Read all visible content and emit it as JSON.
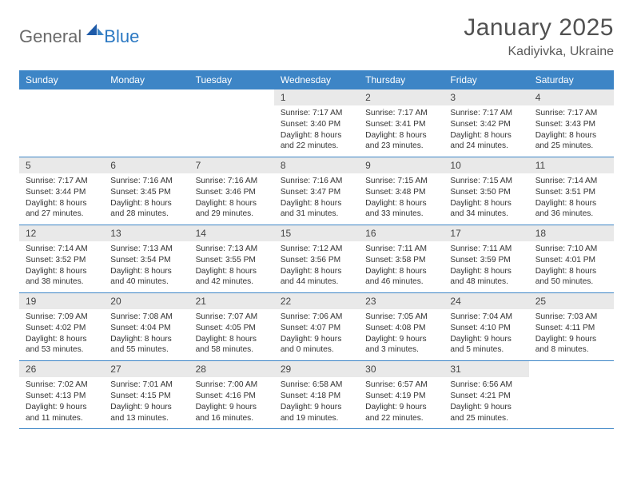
{
  "logo": {
    "general": "General",
    "blue": "Blue"
  },
  "title": "January 2025",
  "location": "Kadiyivka, Ukraine",
  "colors": {
    "header_band": "#3d85c6",
    "day_num_bg": "#e9e9e9",
    "week_border": "#3d85c6",
    "logo_general": "#6a6a6a",
    "logo_blue": "#2b78c2",
    "title_color": "#515151"
  },
  "weekdays": [
    "Sunday",
    "Monday",
    "Tuesday",
    "Wednesday",
    "Thursday",
    "Friday",
    "Saturday"
  ],
  "weeks": [
    [
      {
        "empty": true
      },
      {
        "empty": true
      },
      {
        "empty": true
      },
      {
        "n": "1",
        "sr": "7:17 AM",
        "ss": "3:40 PM",
        "dh": "8",
        "dm": "22"
      },
      {
        "n": "2",
        "sr": "7:17 AM",
        "ss": "3:41 PM",
        "dh": "8",
        "dm": "23"
      },
      {
        "n": "3",
        "sr": "7:17 AM",
        "ss": "3:42 PM",
        "dh": "8",
        "dm": "24"
      },
      {
        "n": "4",
        "sr": "7:17 AM",
        "ss": "3:43 PM",
        "dh": "8",
        "dm": "25"
      }
    ],
    [
      {
        "n": "5",
        "sr": "7:17 AM",
        "ss": "3:44 PM",
        "dh": "8",
        "dm": "27"
      },
      {
        "n": "6",
        "sr": "7:16 AM",
        "ss": "3:45 PM",
        "dh": "8",
        "dm": "28"
      },
      {
        "n": "7",
        "sr": "7:16 AM",
        "ss": "3:46 PM",
        "dh": "8",
        "dm": "29"
      },
      {
        "n": "8",
        "sr": "7:16 AM",
        "ss": "3:47 PM",
        "dh": "8",
        "dm": "31"
      },
      {
        "n": "9",
        "sr": "7:15 AM",
        "ss": "3:48 PM",
        "dh": "8",
        "dm": "33"
      },
      {
        "n": "10",
        "sr": "7:15 AM",
        "ss": "3:50 PM",
        "dh": "8",
        "dm": "34"
      },
      {
        "n": "11",
        "sr": "7:14 AM",
        "ss": "3:51 PM",
        "dh": "8",
        "dm": "36"
      }
    ],
    [
      {
        "n": "12",
        "sr": "7:14 AM",
        "ss": "3:52 PM",
        "dh": "8",
        "dm": "38"
      },
      {
        "n": "13",
        "sr": "7:13 AM",
        "ss": "3:54 PM",
        "dh": "8",
        "dm": "40"
      },
      {
        "n": "14",
        "sr": "7:13 AM",
        "ss": "3:55 PM",
        "dh": "8",
        "dm": "42"
      },
      {
        "n": "15",
        "sr": "7:12 AM",
        "ss": "3:56 PM",
        "dh": "8",
        "dm": "44"
      },
      {
        "n": "16",
        "sr": "7:11 AM",
        "ss": "3:58 PM",
        "dh": "8",
        "dm": "46"
      },
      {
        "n": "17",
        "sr": "7:11 AM",
        "ss": "3:59 PM",
        "dh": "8",
        "dm": "48"
      },
      {
        "n": "18",
        "sr": "7:10 AM",
        "ss": "4:01 PM",
        "dh": "8",
        "dm": "50"
      }
    ],
    [
      {
        "n": "19",
        "sr": "7:09 AM",
        "ss": "4:02 PM",
        "dh": "8",
        "dm": "53"
      },
      {
        "n": "20",
        "sr": "7:08 AM",
        "ss": "4:04 PM",
        "dh": "8",
        "dm": "55"
      },
      {
        "n": "21",
        "sr": "7:07 AM",
        "ss": "4:05 PM",
        "dh": "8",
        "dm": "58"
      },
      {
        "n": "22",
        "sr": "7:06 AM",
        "ss": "4:07 PM",
        "dh": "9",
        "dm": "0"
      },
      {
        "n": "23",
        "sr": "7:05 AM",
        "ss": "4:08 PM",
        "dh": "9",
        "dm": "3"
      },
      {
        "n": "24",
        "sr": "7:04 AM",
        "ss": "4:10 PM",
        "dh": "9",
        "dm": "5"
      },
      {
        "n": "25",
        "sr": "7:03 AM",
        "ss": "4:11 PM",
        "dh": "9",
        "dm": "8"
      }
    ],
    [
      {
        "n": "26",
        "sr": "7:02 AM",
        "ss": "4:13 PM",
        "dh": "9",
        "dm": "11"
      },
      {
        "n": "27",
        "sr": "7:01 AM",
        "ss": "4:15 PM",
        "dh": "9",
        "dm": "13"
      },
      {
        "n": "28",
        "sr": "7:00 AM",
        "ss": "4:16 PM",
        "dh": "9",
        "dm": "16"
      },
      {
        "n": "29",
        "sr": "6:58 AM",
        "ss": "4:18 PM",
        "dh": "9",
        "dm": "19"
      },
      {
        "n": "30",
        "sr": "6:57 AM",
        "ss": "4:19 PM",
        "dh": "9",
        "dm": "22"
      },
      {
        "n": "31",
        "sr": "6:56 AM",
        "ss": "4:21 PM",
        "dh": "9",
        "dm": "25"
      },
      {
        "empty": true
      }
    ]
  ],
  "labels": {
    "sunrise": "Sunrise:",
    "sunset": "Sunset:",
    "daylight": "Daylight:",
    "hours": "hours",
    "and": "and",
    "minutes": "minutes."
  }
}
